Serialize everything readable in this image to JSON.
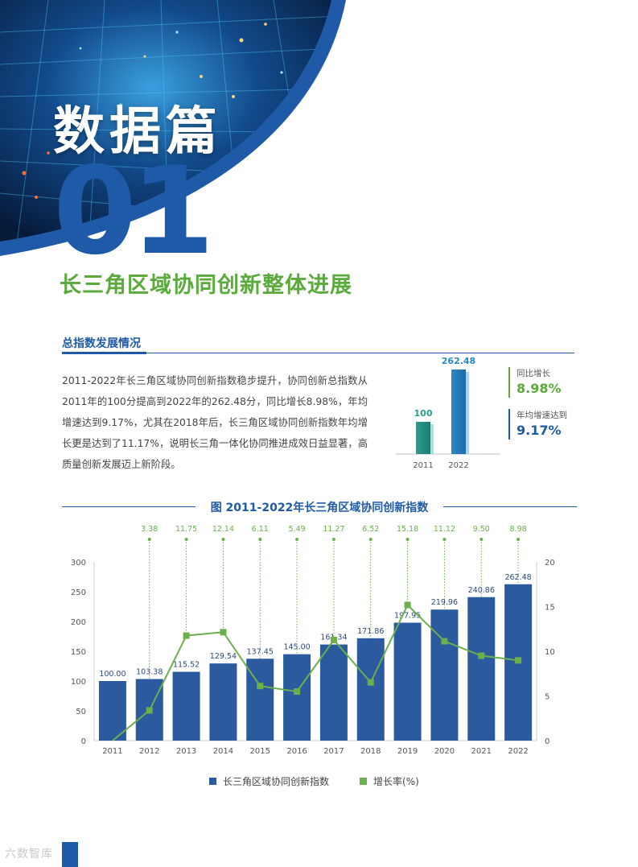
{
  "hero": {
    "title": "数据篇",
    "number": "01",
    "subtitle": "长三角区域协同创新整体进展"
  },
  "section": {
    "heading": "总指数发展情况",
    "paragraph": "2011-2022年长三角区域协同创新指数稳步提升，协同创新总指数从2011年的100分提高到2022年的262.48分，同比增长8.98%，年均增速达到9.17%，尤其在2018年后，长三角区域协同创新指数年均增长更是达到了11.17%，说明长三角一体化协同推进成效日益显著，高质量创新发展迈上新阶段。"
  },
  "mini_chart": {
    "categories": [
      "2011",
      "2022"
    ],
    "values": [
      100,
      262.48
    ],
    "value_labels": [
      "100",
      "262.48"
    ],
    "stats": [
      {
        "label": "同比增长",
        "value": "8.98%"
      },
      {
        "label": "年均增速达到",
        "value": "9.17%"
      }
    ]
  },
  "chart_data": {
    "type": "bar",
    "title": "图 2011-2022年长三角区域协同创新指数",
    "categories": [
      "2011",
      "2012",
      "2013",
      "2014",
      "2015",
      "2016",
      "2017",
      "2018",
      "2019",
      "2020",
      "2021",
      "2022"
    ],
    "series": [
      {
        "name": "长三角区域协同创新指数",
        "type": "bar",
        "axis": "left",
        "values": [
          100.0,
          103.38,
          115.52,
          129.54,
          137.45,
          145.0,
          161.34,
          171.86,
          197.95,
          219.96,
          240.86,
          262.48
        ],
        "labels": [
          "100.00",
          "103.38",
          "115.52",
          "129.54",
          "137.45",
          "145.00",
          "161.34",
          "171.86",
          "197.95",
          "219.96",
          "240.86",
          "262.48"
        ]
      },
      {
        "name": "增长率(%)",
        "type": "line",
        "axis": "right",
        "values": [
          0,
          3.38,
          11.75,
          12.14,
          6.11,
          5.49,
          11.27,
          6.52,
          15.18,
          11.12,
          9.5,
          8.98
        ],
        "labels": [
          "",
          "3.38",
          "11.75",
          "12.14",
          "6.11",
          "5.49",
          "11.27",
          "6.52",
          "15.18",
          "11.12",
          "9.50",
          "8.98"
        ]
      }
    ],
    "y_left": {
      "min": 0,
      "max": 300,
      "ticks": [
        "0",
        "50",
        "100",
        "150",
        "200",
        "250",
        "300"
      ]
    },
    "y_right": {
      "min": 0,
      "max": 20,
      "ticks": [
        "0",
        "5",
        "10",
        "15",
        "20"
      ]
    },
    "legend_position": "bottom",
    "grid": false,
    "colors": {
      "bar": "#2b5a9e",
      "line": "#6ab04c"
    }
  },
  "legend": {
    "items": [
      {
        "label": "长三角区域协同创新指数",
        "color": "#2b5a9e"
      },
      {
        "label": "增长率(%)",
        "color": "#6ab04c"
      }
    ]
  },
  "watermark": "六数智库"
}
